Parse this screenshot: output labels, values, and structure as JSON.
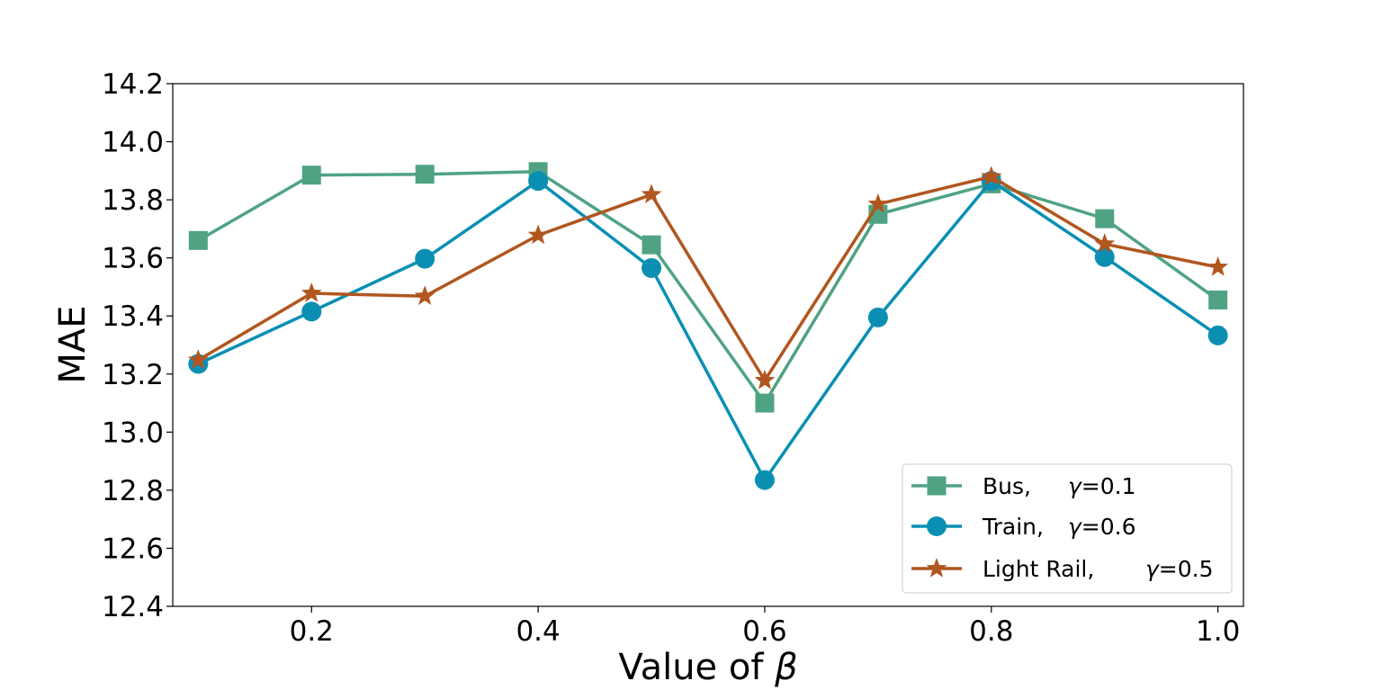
{
  "chart_data": {
    "type": "line",
    "title": "",
    "xlabel": "Value of ",
    "xlabel_symbol": "β",
    "ylabel": "MAE",
    "x": [
      0.1,
      0.2,
      0.3,
      0.4,
      0.5,
      0.6,
      0.7,
      0.8,
      0.9,
      1.0
    ],
    "xlim": [
      0.0775,
      1.0225
    ],
    "ylim": [
      12.4,
      14.2
    ],
    "xticks": [
      "0.2",
      "0.4",
      "0.6",
      "0.8",
      "1.0"
    ],
    "xtick_values": [
      0.2,
      0.4,
      0.6,
      0.8,
      1.0
    ],
    "yticks": [
      "12.4",
      "12.6",
      "12.8",
      "13.0",
      "13.2",
      "13.4",
      "13.6",
      "13.8",
      "14.0",
      "14.2"
    ],
    "ytick_values": [
      12.4,
      12.6,
      12.8,
      13.0,
      13.2,
      13.4,
      13.6,
      13.8,
      14.0,
      14.2
    ],
    "grid": false,
    "legend_position": "lower-right",
    "series": [
      {
        "name": "Bus,",
        "param_symbol": "γ",
        "param_value": "=0.1",
        "marker": "square",
        "color": "#4fa383",
        "values": [
          13.66,
          13.885,
          13.888,
          13.897,
          13.645,
          13.1,
          13.75,
          13.855,
          13.735,
          13.455
        ]
      },
      {
        "name": "Train,",
        "param_symbol": "γ",
        "param_value": "=0.6",
        "marker": "circle",
        "color": "#0a8fb3",
        "values": [
          13.235,
          13.415,
          13.597,
          13.865,
          13.565,
          12.835,
          13.395,
          13.865,
          13.603,
          13.333
        ]
      },
      {
        "name": "Light Rail,",
        "param_symbol": "γ",
        "param_value": "=0.5",
        "marker": "star",
        "color": "#b1561f",
        "values": [
          13.248,
          13.478,
          13.468,
          13.678,
          13.818,
          13.178,
          13.785,
          13.88,
          13.648,
          13.568
        ]
      }
    ]
  }
}
